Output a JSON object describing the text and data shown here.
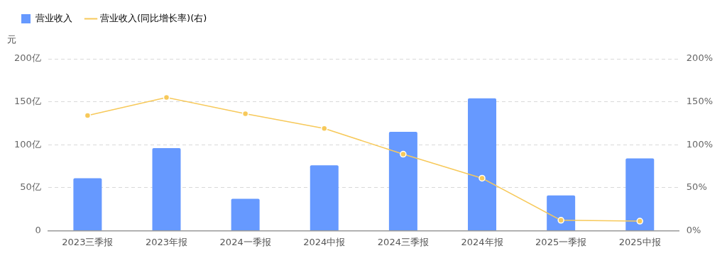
{
  "chart_data": {
    "type": "bar",
    "ylabel": "元",
    "categories": [
      "2023三季报",
      "2023年报",
      "2024一季报",
      "2024中报",
      "2024三季报",
      "2024年报",
      "2025一季报",
      "2025中报"
    ],
    "series": [
      {
        "name": "营业收入",
        "color": "#6699ff",
        "values": [
          61,
          96,
          37,
          76,
          115,
          154,
          41,
          84
        ]
      },
      {
        "name": "营业收入(同比增长率)(右)",
        "type": "line",
        "axis": "y2",
        "color": "#f7c95a",
        "marker": "circle",
        "values": [
          134,
          155,
          136,
          119,
          89,
          61,
          12,
          11
        ]
      }
    ],
    "ylim": [
      0,
      200
    ],
    "yticks": [
      {
        "value": 0,
        "label": "0"
      },
      {
        "value": 50,
        "label": "50亿"
      },
      {
        "value": 100,
        "label": "100亿"
      },
      {
        "value": 150,
        "label": "150亿"
      },
      {
        "value": 200,
        "label": "200亿"
      }
    ],
    "y2lim": [
      0,
      200
    ],
    "y2ticks": [
      {
        "value": 0,
        "label": "0%"
      },
      {
        "value": 50,
        "label": "50%"
      },
      {
        "value": 100,
        "label": "100%"
      },
      {
        "value": 150,
        "label": "150%"
      },
      {
        "value": 200,
        "label": "200%"
      }
    ],
    "grid": "y",
    "legend": "top left"
  }
}
